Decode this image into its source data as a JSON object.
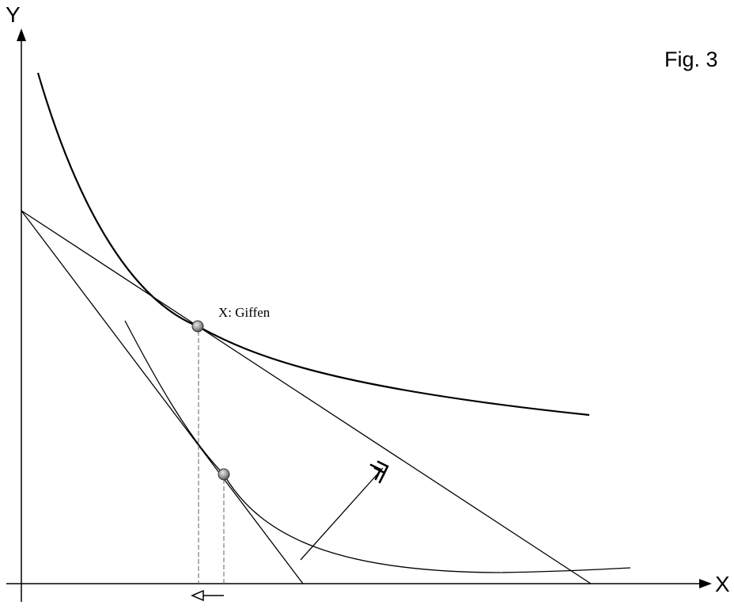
{
  "figure": {
    "label": "Fig. 3",
    "y_axis_label": "Y",
    "x_axis_label": "X",
    "point_label": "X: Giffen"
  },
  "colors": {
    "ink": "#000000",
    "guide": "#666666",
    "point_fill": "#9a9a9a",
    "background": "#ffffff"
  },
  "icons": {
    "shift_arrow": "triple-chevron-arrow-icon",
    "quantity_change": "left-hollow-arrow-icon"
  }
}
